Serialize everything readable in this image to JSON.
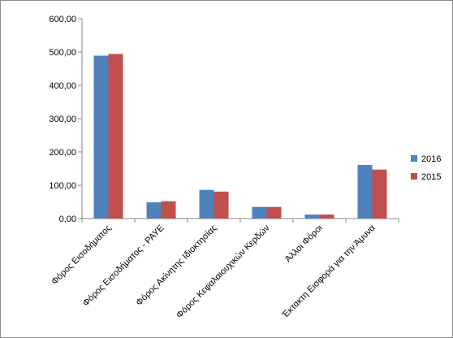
{
  "chart_data": {
    "type": "bar",
    "title": "",
    "xlabel": "",
    "ylabel": "",
    "categories": [
      "Φόρος Εισοδήματος",
      "Φόρος Εισοδήματος - PAYE",
      "Φόρος Ακίνητης Ιδιοκτησίας",
      "Φόρος Κεφαλαιουχικών Κερδών",
      "Άλλοι Φόροι",
      "Έκτακτη Εισφορά για την Άμυνα"
    ],
    "series": [
      {
        "name": "2016",
        "color": "#4f81bd",
        "values": [
          489,
          49,
          86,
          35,
          12,
          161
        ]
      },
      {
        "name": "2015",
        "color": "#c0504d",
        "values": [
          494,
          52,
          81,
          35,
          12,
          147
        ]
      }
    ],
    "ylim": [
      0,
      600
    ],
    "yticks": [
      0,
      100,
      200,
      300,
      400,
      500,
      600
    ],
    "ytick_labels": [
      "0,00",
      "100,00",
      "200,00",
      "300,00",
      "400,00",
      "500,00",
      "600,00"
    ],
    "grid": false,
    "legend_position": "right"
  }
}
